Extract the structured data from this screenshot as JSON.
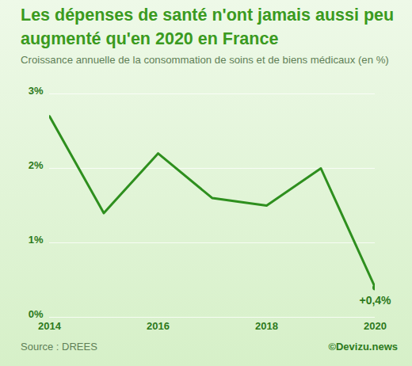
{
  "chart_data": {
    "type": "line",
    "title": "Les dépenses de santé n'ont jamais aussi peu augmenté qu'en 2020 en France",
    "subtitle": "Croissance annuelle de la consommation de soins et de biens médicaux (en %)",
    "x": [
      2014,
      2015,
      2016,
      2017,
      2018,
      2019,
      2020
    ],
    "values": [
      2.7,
      1.4,
      2.2,
      1.6,
      1.5,
      2.0,
      0.4
    ],
    "color": "#2e8f1e",
    "xlim": [
      2014,
      2020
    ],
    "xticks": [
      2014,
      2016,
      2018,
      2020
    ],
    "ylim": [
      0,
      3
    ],
    "yticks": [
      {
        "value": 0,
        "label": "0%"
      },
      {
        "value": 1,
        "label": "1%"
      },
      {
        "value": 2,
        "label": "2%"
      },
      {
        "value": 3,
        "label": "3%"
      }
    ],
    "grid": true,
    "annotations": [
      {
        "text": "+0,4%",
        "x": 2020,
        "y": 0.4
      }
    ],
    "source": "Source : DREES",
    "credit": "©Devizu.news"
  }
}
